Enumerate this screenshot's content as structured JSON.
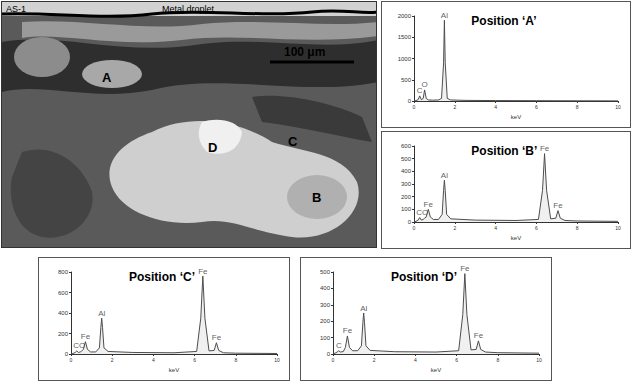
{
  "image": {
    "sample": "AS-1",
    "droplet": "Metal droplet",
    "scale": "100 μm",
    "points": [
      "A",
      "B",
      "C",
      "D"
    ]
  },
  "chart_data": [
    {
      "type": "line",
      "title": "Position ‘A’",
      "x_label": "keV",
      "color": "#4d4d4d",
      "grid": false,
      "xlim": [
        0,
        10
      ],
      "xticks": [
        0,
        2,
        4,
        6,
        8,
        10
      ],
      "ylim": [
        0,
        2000
      ],
      "yticks": [
        0,
        500,
        1000,
        1500,
        2000
      ],
      "x": [
        0,
        0.1,
        0.2,
        0.28,
        0.36,
        0.45,
        0.52,
        0.6,
        0.7,
        0.9,
        1.2,
        1.35,
        1.45,
        1.49,
        1.53,
        1.63,
        1.8,
        2.5,
        4,
        6,
        8,
        10
      ],
      "values": [
        0,
        10,
        30,
        120,
        30,
        60,
        260,
        60,
        25,
        20,
        25,
        60,
        900,
        1900,
        900,
        60,
        25,
        15,
        10,
        8,
        5,
        3
      ],
      "annotations": [
        {
          "text": "C",
          "x": 0.28,
          "y": 120
        },
        {
          "text": "O",
          "x": 0.52,
          "y": 260
        },
        {
          "text": "Al",
          "x": 1.49,
          "y": 1900
        }
      ]
    },
    {
      "type": "line",
      "title": "Position ‘B’",
      "x_label": "keV",
      "color": "#4d4d4d",
      "grid": false,
      "xlim": [
        0,
        10
      ],
      "xticks": [
        0,
        2,
        4,
        6,
        8,
        10
      ],
      "ylim": [
        0,
        600
      ],
      "yticks": [
        0,
        100,
        200,
        300,
        400,
        500,
        600
      ],
      "x": [
        0,
        0.1,
        0.2,
        0.28,
        0.36,
        0.45,
        0.52,
        0.6,
        0.7,
        0.8,
        0.95,
        1.2,
        1.38,
        1.45,
        1.49,
        1.53,
        1.6,
        1.8,
        3,
        5,
        6.1,
        6.3,
        6.4,
        6.5,
        6.7,
        6.95,
        7.06,
        7.17,
        7.4,
        8,
        10
      ],
      "values": [
        0,
        5,
        15,
        35,
        15,
        20,
        30,
        40,
        100,
        40,
        20,
        20,
        60,
        250,
        330,
        250,
        60,
        25,
        15,
        12,
        20,
        250,
        540,
        250,
        25,
        30,
        90,
        30,
        12,
        8,
        5
      ],
      "annotations": [
        {
          "text": "CO",
          "x": 0.4,
          "y": 35
        },
        {
          "text": "Fe",
          "x": 0.7,
          "y": 100
        },
        {
          "text": "Al",
          "x": 1.49,
          "y": 330
        },
        {
          "text": "Fe",
          "x": 6.4,
          "y": 540
        },
        {
          "text": "Fe",
          "x": 7.06,
          "y": 90
        }
      ]
    },
    {
      "type": "line",
      "title": "Position ‘C’",
      "x_label": "keV",
      "color": "#4d4d4d",
      "grid": false,
      "xlim": [
        0,
        10
      ],
      "xticks": [
        0,
        2,
        4,
        6,
        8,
        10
      ],
      "ylim": [
        0,
        800
      ],
      "yticks": [
        0,
        200,
        400,
        600,
        800
      ],
      "x": [
        0,
        0.1,
        0.2,
        0.28,
        0.36,
        0.45,
        0.52,
        0.6,
        0.7,
        0.8,
        0.95,
        1.2,
        1.38,
        1.45,
        1.49,
        1.53,
        1.6,
        1.8,
        3,
        5,
        6.1,
        6.3,
        6.4,
        6.5,
        6.7,
        6.95,
        7.06,
        7.17,
        7.4,
        8,
        10
      ],
      "values": [
        0,
        5,
        15,
        30,
        15,
        20,
        30,
        45,
        120,
        45,
        20,
        20,
        60,
        260,
        350,
        260,
        60,
        25,
        15,
        12,
        25,
        350,
        760,
        350,
        30,
        35,
        110,
        35,
        12,
        8,
        5
      ],
      "annotations": [
        {
          "text": "CO",
          "x": 0.4,
          "y": 30
        },
        {
          "text": "Fe",
          "x": 0.7,
          "y": 120
        },
        {
          "text": "Al",
          "x": 1.49,
          "y": 350
        },
        {
          "text": "Fe",
          "x": 6.4,
          "y": 760
        },
        {
          "text": "Fe",
          "x": 7.06,
          "y": 110
        }
      ]
    },
    {
      "type": "line",
      "title": "Position ‘D’",
      "x_label": "keV",
      "color": "#4d4d4d",
      "grid": false,
      "xlim": [
        0,
        10
      ],
      "xticks": [
        0,
        2,
        4,
        6,
        8,
        10
      ],
      "ylim": [
        0,
        500
      ],
      "yticks": [
        0,
        100,
        200,
        300,
        400,
        500
      ],
      "x": [
        0,
        0.1,
        0.2,
        0.28,
        0.36,
        0.5,
        0.6,
        0.7,
        0.8,
        0.95,
        1.2,
        1.38,
        1.45,
        1.49,
        1.53,
        1.6,
        1.8,
        3,
        5,
        6.1,
        6.3,
        6.4,
        6.5,
        6.7,
        6.95,
        7.06,
        7.17,
        7.4,
        8,
        10
      ],
      "values": [
        0,
        5,
        12,
        20,
        12,
        15,
        40,
        110,
        40,
        20,
        20,
        50,
        190,
        250,
        190,
        50,
        22,
        14,
        12,
        20,
        240,
        490,
        240,
        25,
        28,
        80,
        28,
        12,
        8,
        5
      ],
      "annotations": [
        {
          "text": "C",
          "x": 0.28,
          "y": 20
        },
        {
          "text": "Fe",
          "x": 0.7,
          "y": 110
        },
        {
          "text": "Al",
          "x": 1.49,
          "y": 250
        },
        {
          "text": "Fe",
          "x": 6.4,
          "y": 490
        },
        {
          "text": "Fe",
          "x": 7.06,
          "y": 80
        }
      ]
    }
  ]
}
